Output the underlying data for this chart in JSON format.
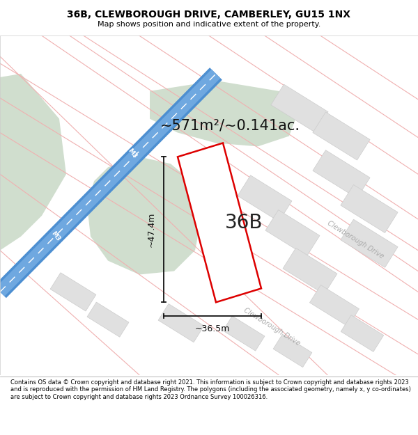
{
  "title": "36B, CLEWBOROUGH DRIVE, CAMBERLEY, GU15 1NX",
  "subtitle": "Map shows position and indicative extent of the property.",
  "footer": "Contains OS data © Crown copyright and database right 2021. This information is subject to Crown copyright and database rights 2023 and is reproduced with the permission of HM Land Registry. The polygons (including the associated geometry, namely x, y co-ordinates) are subject to Crown copyright and database rights 2023 Ordnance Survey 100026316.",
  "property_label": "36B",
  "area_label": "~571m²/~0.141ac.",
  "width_label": "~36.5m",
  "height_label": "~47.4m",
  "road_color": "#f0b0b0",
  "motorway_color_outer": "#5599dd",
  "motorway_color_inner": "#88bbee",
  "motorway_center": "#aaccff",
  "green_area_color": "#d0dece",
  "building_color": "#e0e0e0",
  "building_edge": "#cccccc",
  "property_fill": "white",
  "property_edge": "#dd0000",
  "arrow_color": "#111111",
  "map_bg": "#ffffff",
  "title_fontsize": 10,
  "subtitle_fontsize": 8,
  "area_fontsize": 15,
  "label_fontsize": 20,
  "dim_fontsize": 9
}
